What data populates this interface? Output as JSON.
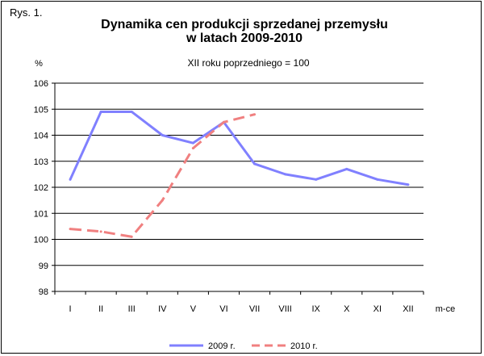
{
  "figure_label": "Rys. 1.",
  "chart_data": {
    "type": "line",
    "title": "Dynamika cen produkcji sprzedanej przemysłu",
    "title_line2": "w latach 2009-2010",
    "subtitle": "XII roku poprzedniego = 100",
    "ylabel": "%",
    "xlabel": "m-ce",
    "ylim": [
      98,
      106
    ],
    "yticks": [
      98,
      99,
      100,
      101,
      102,
      103,
      104,
      105,
      106
    ],
    "grid": true,
    "legend_position": "bottom",
    "categories": [
      "I",
      "II",
      "III",
      "IV",
      "V",
      "VI",
      "VII",
      "VIII",
      "IX",
      "X",
      "XI",
      "XII"
    ],
    "series": [
      {
        "name": "2009 r.",
        "color": "#8080ff",
        "style": "solid",
        "values": [
          102.3,
          104.9,
          104.9,
          104.0,
          103.7,
          104.5,
          102.9,
          102.5,
          102.3,
          102.7,
          102.3,
          102.1
        ]
      },
      {
        "name": "2010 r.",
        "color": "#f08080",
        "style": "dashed",
        "values": [
          100.4,
          100.3,
          100.1,
          101.5,
          103.5,
          104.5,
          104.8,
          null,
          null,
          null,
          null,
          null
        ]
      }
    ]
  }
}
